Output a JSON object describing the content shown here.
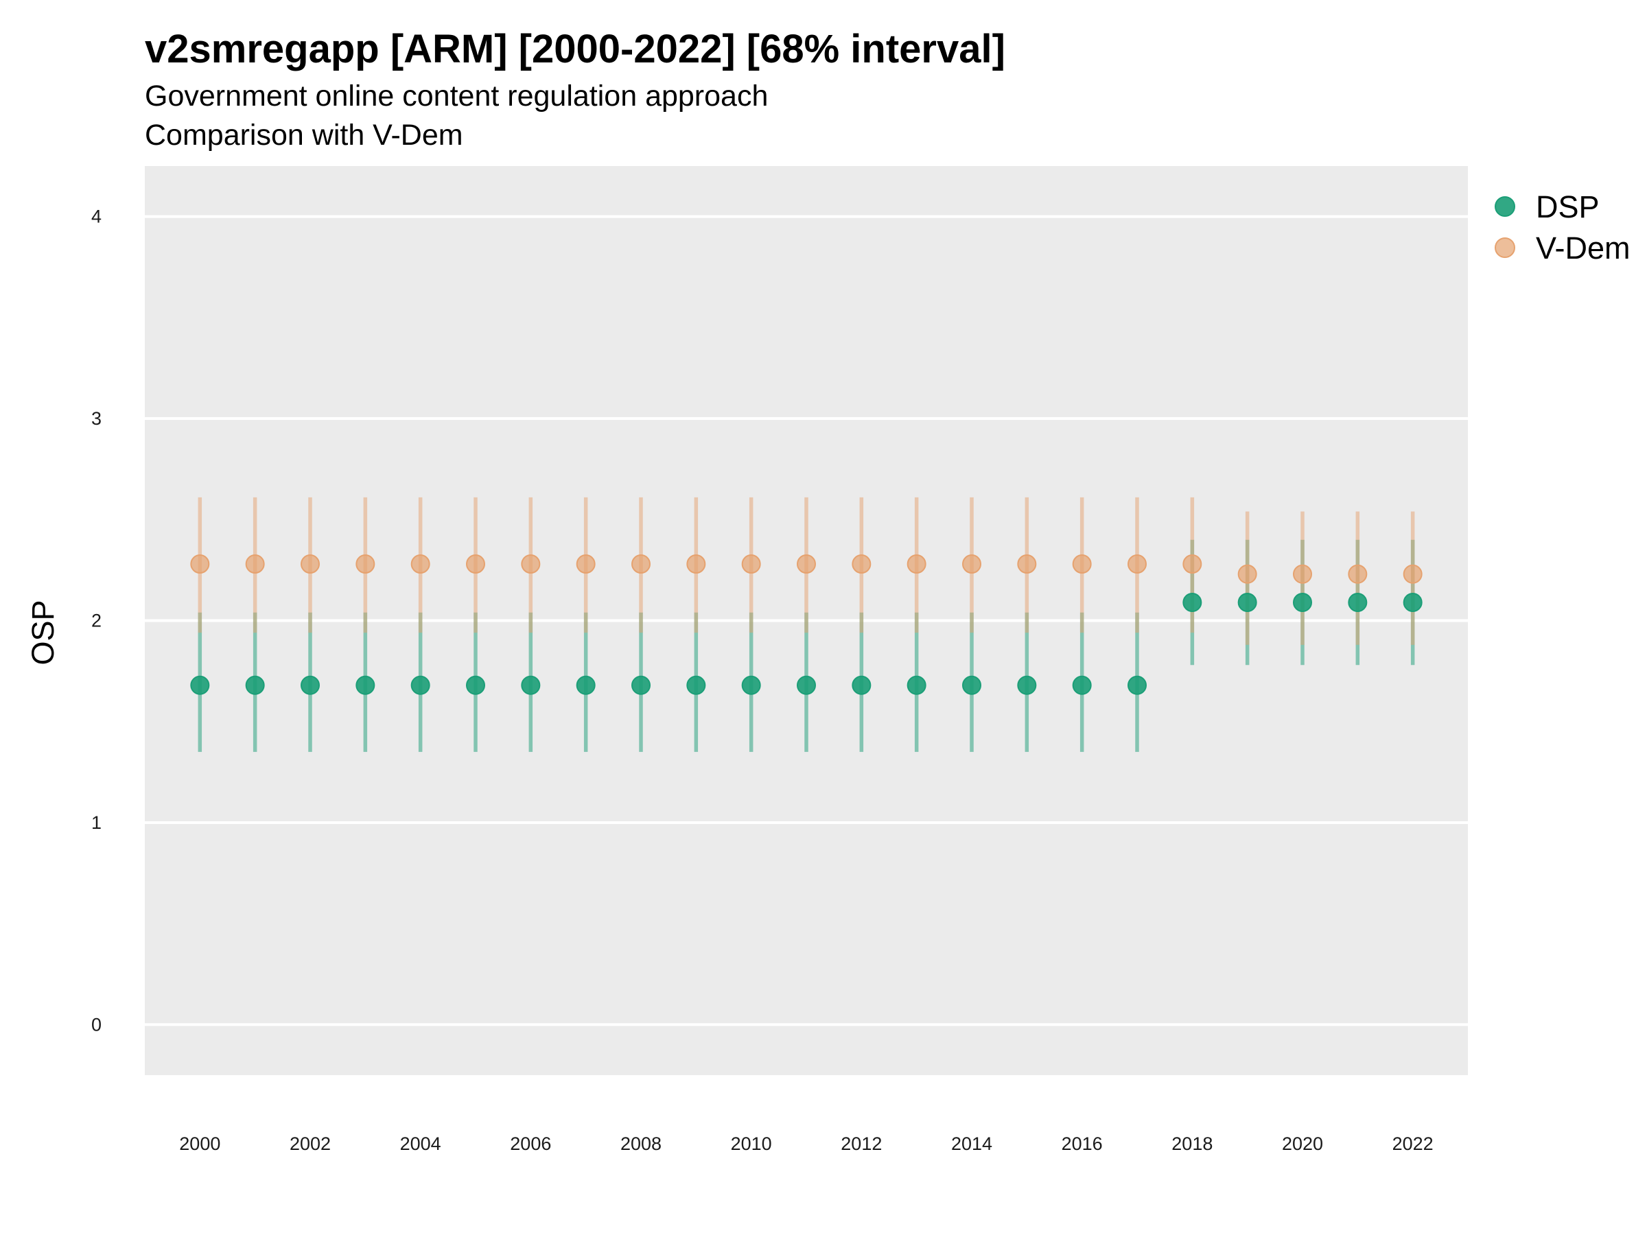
{
  "chart_data": {
    "type": "scatter",
    "title": "v2smregapp [ARM] [2000-2022] [68% interval]",
    "subtitle": "Government online content regulation approach",
    "subtitle2": "Comparison with V-Dem",
    "ylabel": "OSP",
    "xlabel": "",
    "ylim": [
      -0.25,
      4.25
    ],
    "xlim": [
      1999.0,
      2023.0
    ],
    "y_ticks": [
      0,
      1,
      2,
      3,
      4
    ],
    "x_ticks": [
      2000,
      2002,
      2004,
      2006,
      2008,
      2010,
      2012,
      2014,
      2016,
      2018,
      2020,
      2022
    ],
    "grid": "horizontal",
    "legend_position": "right-top",
    "colors": {
      "DSP": "#1b9e77",
      "V-Dem": "#e6a26f",
      "panel": "#ebebeb",
      "grid": "#ffffff"
    },
    "x": [
      2000,
      2001,
      2002,
      2003,
      2004,
      2005,
      2006,
      2007,
      2008,
      2009,
      2010,
      2011,
      2012,
      2013,
      2014,
      2015,
      2016,
      2017,
      2018,
      2019,
      2020,
      2021,
      2022
    ],
    "series": [
      {
        "name": "DSP",
        "values": [
          1.68,
          1.68,
          1.68,
          1.68,
          1.68,
          1.68,
          1.68,
          1.68,
          1.68,
          1.68,
          1.68,
          1.68,
          1.68,
          1.68,
          1.68,
          1.68,
          1.68,
          1.68,
          2.09,
          2.09,
          2.09,
          2.09,
          2.09
        ],
        "lower": [
          1.35,
          1.35,
          1.35,
          1.35,
          1.35,
          1.35,
          1.35,
          1.35,
          1.35,
          1.35,
          1.35,
          1.35,
          1.35,
          1.35,
          1.35,
          1.35,
          1.35,
          1.35,
          1.78,
          1.78,
          1.78,
          1.78,
          1.78
        ],
        "upper": [
          2.04,
          2.04,
          2.04,
          2.04,
          2.04,
          2.04,
          2.04,
          2.04,
          2.04,
          2.04,
          2.04,
          2.04,
          2.04,
          2.04,
          2.04,
          2.04,
          2.04,
          2.04,
          2.4,
          2.4,
          2.4,
          2.4,
          2.4
        ]
      },
      {
        "name": "V-Dem",
        "values": [
          2.28,
          2.28,
          2.28,
          2.28,
          2.28,
          2.28,
          2.28,
          2.28,
          2.28,
          2.28,
          2.28,
          2.28,
          2.28,
          2.28,
          2.28,
          2.28,
          2.28,
          2.28,
          2.28,
          2.23,
          2.23,
          2.23,
          2.23
        ],
        "lower": [
          1.94,
          1.94,
          1.94,
          1.94,
          1.94,
          1.94,
          1.94,
          1.94,
          1.94,
          1.94,
          1.94,
          1.94,
          1.94,
          1.94,
          1.94,
          1.94,
          1.94,
          1.94,
          1.94,
          1.88,
          1.88,
          1.88,
          1.88
        ],
        "upper": [
          2.61,
          2.61,
          2.61,
          2.61,
          2.61,
          2.61,
          2.61,
          2.61,
          2.61,
          2.61,
          2.61,
          2.61,
          2.61,
          2.61,
          2.61,
          2.61,
          2.61,
          2.61,
          2.61,
          2.54,
          2.54,
          2.54,
          2.54
        ]
      }
    ]
  }
}
